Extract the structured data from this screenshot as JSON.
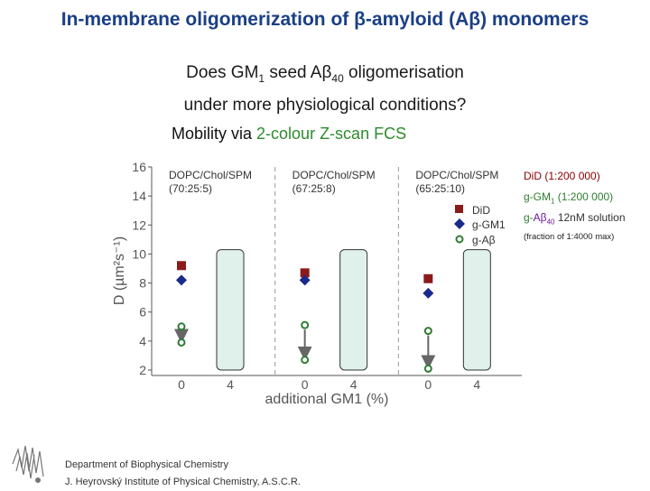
{
  "title": "In-membrane oligomerization of β-amyloid (Aβ) monomers",
  "question": {
    "line1_a": "Does GM",
    "line1_sub1": "1",
    "line1_b": " seed Aβ",
    "line1_sub2": "40",
    "line1_c": " oligomerisation",
    "line2": "under more physiological conditions?"
  },
  "mobility": {
    "prefix": "Mobility via ",
    "highlight": "2-colour Z-scan FCS"
  },
  "annotations": {
    "did": "DiD (1:200 000)",
    "gm1_a": "g-GM",
    "gm1_sub": "1",
    "gm1_b": " (1:200 000)",
    "gab_a": "g-",
    "gab_purple": "Aβ",
    "gab_sub": "40",
    "gab_b": " 12nM solution",
    "fraction": "(fraction of 1:4000 max)"
  },
  "footer": {
    "dept": "Department of Biophysical Chemistry",
    "inst": "J. Heyrovský Institute of Physical Chemistry, A.S.C.R."
  },
  "colors": {
    "title": "#1a3f86",
    "did": "#8b1a1a",
    "gm1": "#1a2a8a",
    "gab": "#2e7d32",
    "box_fill": "#dff1ea",
    "grid": "#9a9a9a"
  },
  "chart_data": {
    "type": "scatter",
    "ylabel": "D (µm²s⁻¹)",
    "xlabel": "additional GM1 (%)",
    "ylim": [
      2,
      16
    ],
    "yticks": [
      2,
      4,
      6,
      8,
      10,
      12,
      14,
      16
    ],
    "panels": [
      {
        "label_line1": "DOPC/Chol/SPM",
        "label_line2": "(70:25:5)",
        "x_ticks": [
          "0",
          "4"
        ],
        "DiD": 9.2,
        "g-GM1": 8.2,
        "g-Aβ": [
          5.0,
          3.9
        ],
        "box": [
          2,
          10.3
        ]
      },
      {
        "label_line1": "DOPC/Chol/SPM",
        "label_line2": "(67:25:8)",
        "x_ticks": [
          "0",
          "4"
        ],
        "DiD": 8.7,
        "g-GM1": 8.2,
        "g-Aβ": [
          5.1,
          2.7
        ],
        "box": [
          2,
          10.3
        ]
      },
      {
        "label_line1": "DOPC/Chol/SPM",
        "label_line2": "(65:25:10)",
        "x_ticks": [
          "0",
          "4"
        ],
        "DiD": 8.3,
        "g-GM1": 7.3,
        "g-Aβ": [
          4.7,
          2.1
        ],
        "box": [
          2,
          10.3
        ]
      }
    ],
    "legend": [
      {
        "name": "DiD",
        "marker": "square"
      },
      {
        "name": "g-GM1",
        "marker": "diamond"
      },
      {
        "name": "g-Aβ",
        "marker": "circle"
      }
    ]
  }
}
